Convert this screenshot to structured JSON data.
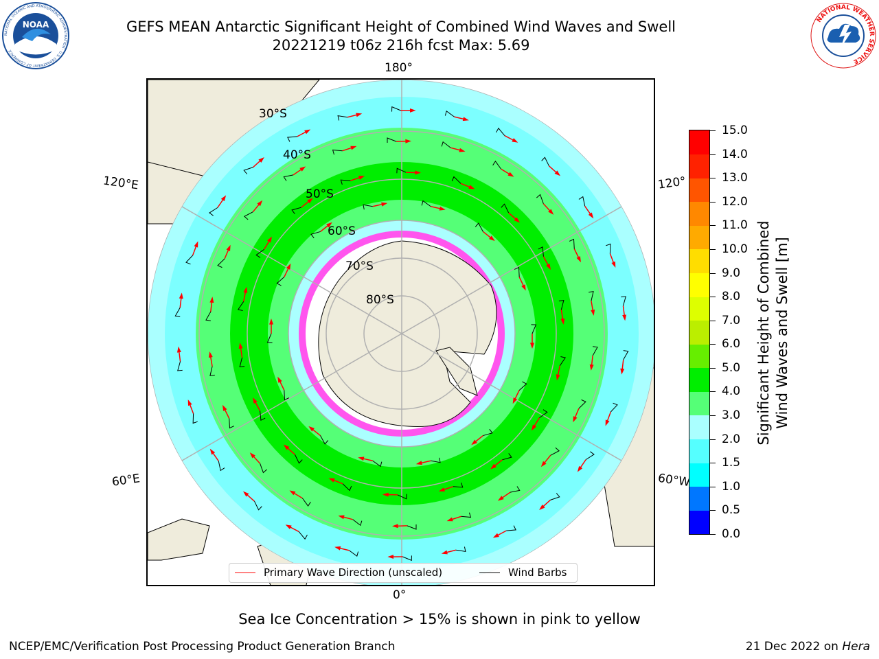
{
  "header": {
    "title_line1": "GEFS MEAN Antarctic Significant Height of Combined Wind Waves and Swell",
    "title_line2": "20221219 t06z 216h fcst   Max: 5.69"
  },
  "logos": {
    "left": "NOAA",
    "left_ring": "NATIONAL OCEANIC AND ATMOSPHERIC ADMINISTRATION · U.S. DEPARTMENT OF COMMERCE",
    "right_ring": "NATIONAL WEATHER SERVICE"
  },
  "map": {
    "longitude_labels": {
      "top": "180°",
      "bottom": "0°",
      "left_upper": "120°E",
      "left_lower": "60°E",
      "right_upper": "120°",
      "right_lower": "60°W"
    },
    "latitude_labels": [
      "30°S",
      "40°S",
      "50°S",
      "60°S",
      "70°S",
      "80°S"
    ],
    "colors": {
      "land": "#efecdc",
      "ice_pink": "#ff55ee",
      "ice_white": "#ffffff",
      "gridline": "#b0b0b0"
    }
  },
  "legend": {
    "wave_label": "Primary Wave Direction (unscaled)",
    "wind_label": "Wind Barbs",
    "wave_color": "#ff0000",
    "wind_color": "#000000"
  },
  "colorbar": {
    "label_line1": "Significant Height of Combined",
    "label_line2": "Wind Waves and Swell [m]",
    "ticks": [
      "0.0",
      "0.5",
      "1.0",
      "1.5",
      "2.0",
      "3.0",
      "4.0",
      "5.0",
      "6.0",
      "7.0",
      "8.0",
      "9.0",
      "10.0",
      "11.0",
      "12.0",
      "13.0",
      "14.0",
      "15.0"
    ],
    "colors": [
      "#0000ff",
      "#0077ff",
      "#00ffff",
      "#55ffff",
      "#aaffff",
      "#55ff77",
      "#00ee00",
      "#66ee00",
      "#bbee00",
      "#ddff00",
      "#ffff00",
      "#ffdd00",
      "#ffaa00",
      "#ff8800",
      "#ff5500",
      "#ff2200",
      "#ff0000"
    ]
  },
  "subtitle": "Sea Ice Concentration > 15% is shown in pink to yellow",
  "footer": {
    "left": "NCEP/EMC/Verification Post Processing Product Generation Branch",
    "right_date": "21 Dec 2022 on ",
    "right_machine": "Hera"
  }
}
